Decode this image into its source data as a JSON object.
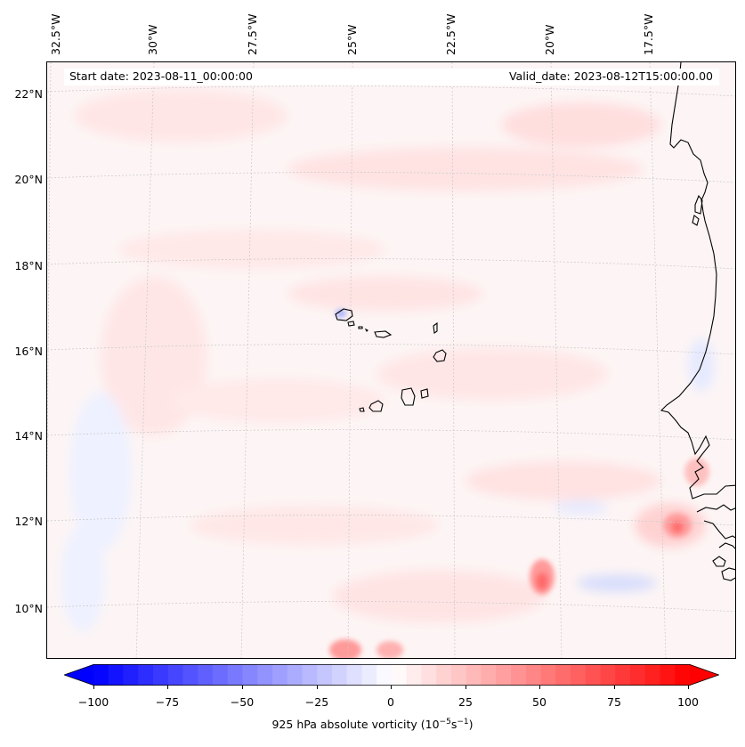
{
  "map": {
    "start_date": "Start date: 2023-08-11_00:00:00",
    "valid_date": "Valid_date: 2023-08-12T15:00:00.00",
    "lon_labels": [
      "32.5°W",
      "30°W",
      "27.5°W",
      "25°W",
      "22.5°W",
      "20°W",
      "17.5°W"
    ],
    "lat_labels": [
      "22°N",
      "20°N",
      "18°N",
      "16°N",
      "14°N",
      "12°N",
      "10°N"
    ],
    "region": {
      "lon_range": [
        -32.5,
        -16.0
      ],
      "lat_range": [
        8.8,
        22.8
      ]
    }
  },
  "colorbar": {
    "label_text": "925 hPa absolute vorticity (10",
    "label_exp1": "−5",
    "label_mid": "s",
    "label_exp2": "−1",
    "label_end": ")",
    "ticks": [
      "−100",
      "−75",
      "−50",
      "−25",
      "0",
      "25",
      "50",
      "75",
      "100"
    ],
    "min": -100,
    "max": 100,
    "step": 5
  },
  "colors": {
    "negative_max": "#0000ff",
    "positive_max": "#ff0000",
    "background": "#fdf5f5",
    "coastline": "#000000"
  }
}
